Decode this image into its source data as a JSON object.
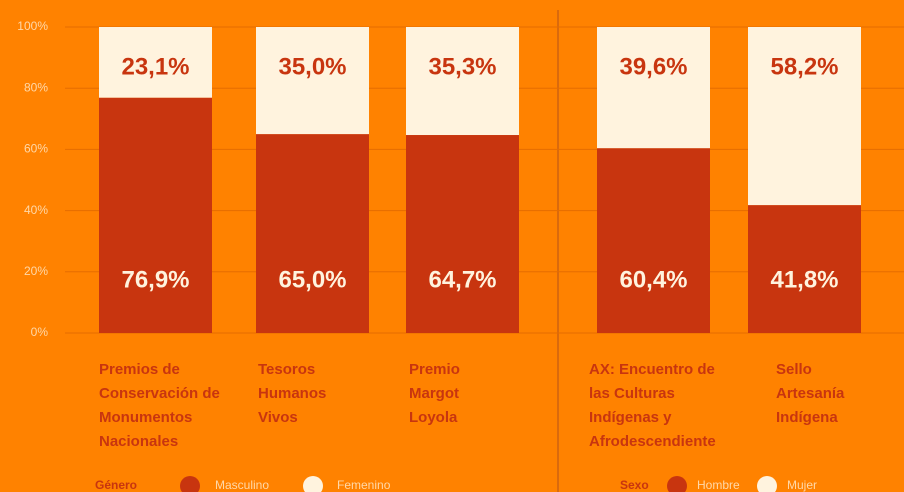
{
  "chart_data": [
    {
      "type": "stacked_bar",
      "categories": [
        "Premios de Conservación de Monumentos Nacionales",
        "Tesoros Humanos Vivos",
        "Premio Margot Loyola"
      ],
      "legend_title": "Género",
      "series": [
        {
          "name": "Masculino",
          "color": "#c8350f",
          "values": [
            76.9,
            65.0,
            64.7
          ],
          "value_labels": [
            "76,9%",
            "65,0%",
            "64,7%"
          ]
        },
        {
          "name": "Femenino",
          "color": "#fff3de",
          "values": [
            23.1,
            35.0,
            35.3
          ],
          "value_labels": [
            "23,1%",
            "35,0%",
            "35,3%"
          ]
        }
      ],
      "ylim": [
        0,
        100
      ],
      "yticks": [
        {
          "value": 0,
          "label": "0%"
        },
        {
          "value": 20,
          "label": "20%"
        },
        {
          "value": 40,
          "label": "40%"
        },
        {
          "value": 60,
          "label": "60%"
        },
        {
          "value": 80,
          "label": "80%"
        },
        {
          "value": 100,
          "label": "100%"
        }
      ],
      "grid": true
    },
    {
      "type": "stacked_bar",
      "categories": [
        "AX: Encuentro de las Culturas Indígenas y Afrodescendiente",
        "Sello Artesanía Indígena"
      ],
      "legend_title": "Sexo",
      "series": [
        {
          "name": "Hombre",
          "color": "#c8350f",
          "values": [
            60.4,
            41.8
          ],
          "value_labels": [
            "60,4%",
            "41,8%"
          ]
        },
        {
          "name": "Mujer",
          "color": "#fff3de",
          "values": [
            39.6,
            58.2
          ],
          "value_labels": [
            "39,6%",
            "58,2%"
          ]
        }
      ],
      "ylim": [
        0,
        100
      ]
    }
  ]
}
